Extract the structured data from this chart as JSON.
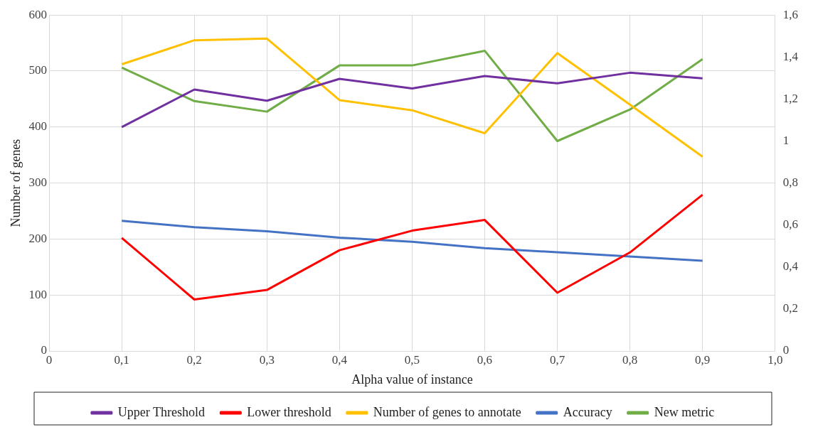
{
  "chart_data": {
    "type": "line",
    "xlabel": "Alpha value of instance",
    "ylabel": "Number of genes",
    "x": [
      0.1,
      0.2,
      0.3,
      0.4,
      0.5,
      0.6,
      0.7,
      0.8,
      0.9
    ],
    "xlim": [
      0,
      1
    ],
    "xticks": [
      0,
      {
        "value": 0.1,
        "label": "0,1"
      },
      {
        "value": 0.2,
        "label": "0,2"
      },
      {
        "value": 0.3,
        "label": "0,3"
      },
      {
        "value": 0.4,
        "label": "0,4"
      },
      {
        "value": 0.5,
        "label": "0,5"
      },
      {
        "value": 0.6,
        "label": "0,6"
      },
      {
        "value": 0.7,
        "label": "0,7"
      },
      {
        "value": 0.8,
        "label": "0,8"
      },
      {
        "value": 0.9,
        "label": "0,9"
      },
      {
        "value": 1,
        "label": "1,0"
      }
    ],
    "ylim": [
      0,
      600
    ],
    "yticks": [
      0,
      100,
      200,
      300,
      400,
      500,
      600
    ],
    "y2lim": [
      0,
      1.6
    ],
    "y2ticks": [
      0,
      {
        "value": 0.2,
        "label": "0,2"
      },
      {
        "value": 0.4,
        "label": "0,4"
      },
      {
        "value": 0.6,
        "label": "0,6"
      },
      {
        "value": 0.8,
        "label": "0,8"
      },
      1,
      {
        "value": 1.2,
        "label": "1,2"
      },
      {
        "value": 1.4,
        "label": "1,4"
      },
      {
        "value": 1.6,
        "label": "1,6"
      }
    ],
    "grid": true,
    "legend": "bottom",
    "marker": "none",
    "line_style": "solid",
    "series": [
      {
        "name": "Upper Threshold",
        "color": "#7030a0",
        "values": [
          400,
          467,
          447,
          486,
          469,
          491,
          478,
          497,
          487
        ]
      },
      {
        "name": "Lower threshold",
        "color": "#ff0000",
        "values": [
          202,
          92,
          109,
          180,
          215,
          234,
          104,
          176,
          279
        ]
      },
      {
        "name": "Number of genes to annotate",
        "color": "#ffc000",
        "values": [
          512,
          555,
          558,
          448,
          430,
          389,
          532,
          440,
          347
        ]
      },
      {
        "name": "Accuracy",
        "color": "#4472c4",
        "axis": "y2",
        "values": [
          0.62,
          0.59,
          0.57,
          0.54,
          0.52,
          0.49,
          0.47,
          0.45,
          0.43
        ]
      },
      {
        "name": "New metric",
        "color": "#70ad47",
        "axis": "y2",
        "values": [
          1.35,
          1.19,
          1.14,
          1.36,
          1.36,
          1.43,
          1.0,
          1.15,
          1.39
        ]
      }
    ]
  }
}
